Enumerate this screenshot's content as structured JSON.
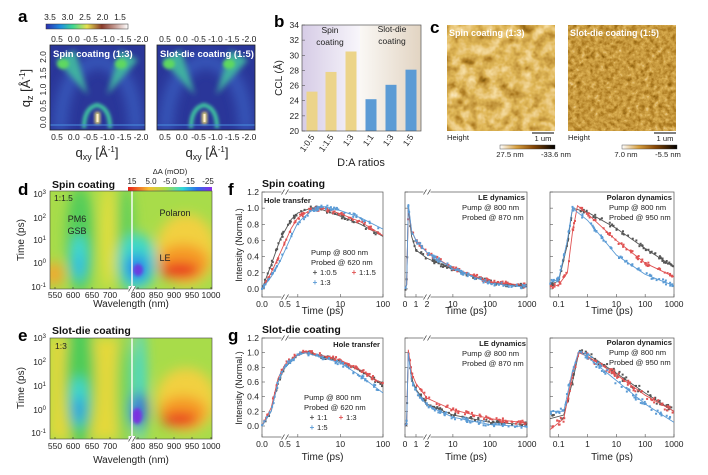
{
  "panel_labels": {
    "a": "a",
    "b": "b",
    "c": "c",
    "d": "d",
    "e": "e",
    "f": "f",
    "g": "g"
  },
  "giwaxs": {
    "colorbar_ticks": [
      "3.5",
      "3.0",
      "2.5",
      "2.0",
      "1.5"
    ],
    "colormap": [
      "#2b2fb0",
      "#1e90e0",
      "#40d890",
      "#e8e050",
      "#8a3a2a",
      "#c8a098",
      "#ffffff"
    ],
    "maps": [
      {
        "title": "Spin coating (1:3)"
      },
      {
        "title": "Slot-die coating (1:5)"
      }
    ],
    "x_ticks": [
      "0.5",
      "0.0",
      "-0.5",
      "-1.0",
      "-1.5",
      "-2.0"
    ],
    "y_ticks": [
      "2.0",
      "1.5",
      "1.0",
      "0.5",
      "0.0"
    ],
    "xlabel": "q",
    "xlabel_sub": "xy",
    "xlabel_unit": " [Å",
    "xlabel_exp": "-1",
    "xlabel_end": "]",
    "ylabel": "q",
    "ylabel_sub": "z",
    "ylabel_unit": " [Å",
    "ylabel_exp": "-1",
    "ylabel_end": "]"
  },
  "afm": {
    "images": [
      {
        "title": "Spin coating (1:3)",
        "height_label": "Height",
        "scale_bar": "1 um",
        "cbar_min": "27.5 nm",
        "cbar_max": "-33.6 nm"
      },
      {
        "title": "Slot-die coating (1:5)",
        "height_label": "Height",
        "scale_bar": "1 um",
        "cbar_min": "7.0 nm",
        "cbar_max": "-5.5 nm"
      }
    ]
  },
  "ta_maps": {
    "colorbar_title": "ΔA (mOD)",
    "colorbar_ticks": [
      "15",
      "5.0",
      "-5.0",
      "-15",
      "-25"
    ],
    "x_ticks": [
      "550",
      "600",
      "650",
      "700",
      "800",
      "850",
      "900",
      "950",
      "1000"
    ],
    "y_ticks": [
      [
        "10",
        "3"
      ],
      [
        "10",
        "2"
      ],
      [
        "10",
        "1"
      ],
      [
        "10",
        "0"
      ],
      [
        "10",
        "-1"
      ]
    ],
    "xlabel": "Wavelength (nm)",
    "ylabel": "Time (ps)",
    "d": {
      "title": "Spin coating",
      "ratio": "1:1.5",
      "labels": {
        "pm6": "PM6",
        "gsb": "GSB",
        "polaron": "Polaron",
        "le": "LE"
      }
    },
    "e": {
      "title": "Slot-die coating",
      "ratio": "1:3"
    }
  },
  "kinetics": {
    "f_title": "Spin coating",
    "g_title": "Slot-die coating",
    "ylabel": "Intensity (Normal.)",
    "xlabel": "Time (ps)",
    "pump": "Pump @ 800 nm",
    "probe_620": "Probed @ 620 nm",
    "probe_870": "Probed @ 870 nm",
    "probe_950": "Probed @ 950 nm",
    "hole_transfer": "Hole transfer",
    "le_dynamics": "LE dynamics",
    "polaron_dynamics": "Polaron dynamics",
    "y_ticks": [
      "0.0",
      "0.2",
      "0.4",
      "0.6",
      "0.8",
      "1.0",
      "1.2"
    ],
    "x_ticks_hole": [
      "0.0",
      "0.5",
      "1",
      "10",
      "100"
    ],
    "x_ticks_le": [
      "0",
      "1",
      "2",
      "10",
      "100",
      "1000"
    ],
    "x_ticks_pol": [
      "0.1",
      "1",
      "10",
      "100",
      "1000"
    ]
  },
  "colors": {
    "gray": "#555555",
    "red": "#e05252",
    "blue": "#5b9bd5",
    "bar_spin": "#ecd48a",
    "bar_slot": "#5b9bd5"
  },
  "chart_data": [
    {
      "id": "b",
      "type": "bar",
      "categories": [
        "1:0.5",
        "1:1.5",
        "1:3",
        "1:1",
        "1:3",
        "1:5"
      ],
      "values": [
        25.2,
        27.8,
        30.5,
        24.2,
        26.1,
        28.1
      ],
      "groups": [
        {
          "label_line1": "Spin",
          "label_line2": "coating",
          "categories": [
            0,
            1,
            2
          ]
        },
        {
          "label_line1": "Slot-die",
          "label_line2": "coating",
          "categories": [
            3,
            4,
            5
          ]
        }
      ],
      "xlabel": "D:A ratios",
      "ylabel": "CCL (Å)",
      "ylim": [
        20,
        34
      ],
      "y_ticks": [
        "20",
        "22",
        "24",
        "26",
        "28",
        "30",
        "32",
        "34"
      ]
    },
    {
      "id": "f-hole",
      "type": "scatter",
      "xscale": "broken linear 0–0.5 / log 0.5–100",
      "xlim": [
        0,
        100
      ],
      "ylim": [
        -0.1,
        1.2
      ],
      "series": [
        {
          "name": "1:0.5",
          "color": "gray",
          "points": [
            [
              0,
              0
            ],
            [
              0.2,
              0.3
            ],
            [
              0.4,
              0.62
            ],
            [
              0.7,
              0.86
            ],
            [
              1,
              0.94
            ],
            [
              2,
              1.0
            ],
            [
              3,
              1.0
            ],
            [
              10,
              0.9
            ],
            [
              30,
              0.8
            ],
            [
              100,
              0.65
            ]
          ]
        },
        {
          "name": "1:1.5",
          "color": "red",
          "points": [
            [
              0,
              0
            ],
            [
              0.2,
              0.2
            ],
            [
              0.4,
              0.45
            ],
            [
              0.7,
              0.75
            ],
            [
              1,
              0.88
            ],
            [
              2,
              0.98
            ],
            [
              4,
              1.0
            ],
            [
              10,
              0.93
            ],
            [
              30,
              0.83
            ],
            [
              100,
              0.66
            ]
          ]
        },
        {
          "name": "1:3",
          "color": "blue",
          "points": [
            [
              0,
              0
            ],
            [
              0.2,
              0.15
            ],
            [
              0.4,
              0.35
            ],
            [
              0.7,
              0.65
            ],
            [
              1,
              0.82
            ],
            [
              2,
              0.96
            ],
            [
              4,
              1.02
            ],
            [
              10,
              0.97
            ],
            [
              30,
              0.88
            ],
            [
              100,
              0.74
            ]
          ]
        }
      ]
    },
    {
      "id": "f-le",
      "type": "scatter",
      "xscale": "broken linear 0–2 / log 2–1000",
      "xlim": [
        0,
        1000
      ],
      "ylim": [
        -0.1,
        1.2
      ],
      "series": [
        {
          "name": "1:0.5",
          "color": "gray",
          "points": [
            [
              0,
              0
            ],
            [
              0.15,
              0.05
            ],
            [
              0.3,
              1.0
            ],
            [
              0.6,
              0.65
            ],
            [
              1,
              0.48
            ],
            [
              2,
              0.38
            ],
            [
              10,
              0.24
            ],
            [
              100,
              0.08
            ],
            [
              1000,
              0.03
            ]
          ]
        },
        {
          "name": "1:1.5",
          "color": "red",
          "points": [
            [
              0,
              0
            ],
            [
              0.15,
              0.05
            ],
            [
              0.3,
              1.02
            ],
            [
              0.6,
              0.72
            ],
            [
              1,
              0.6
            ],
            [
              2,
              0.45
            ],
            [
              10,
              0.26
            ],
            [
              100,
              0.09
            ],
            [
              1000,
              0.04
            ]
          ]
        },
        {
          "name": "1:3",
          "color": "blue",
          "points": [
            [
              0,
              0
            ],
            [
              0.15,
              0.05
            ],
            [
              0.3,
              1.05
            ],
            [
              0.6,
              0.72
            ],
            [
              1,
              0.6
            ],
            [
              2,
              0.45
            ],
            [
              10,
              0.25
            ],
            [
              100,
              0.07
            ],
            [
              1000,
              0.02
            ]
          ]
        }
      ]
    },
    {
      "id": "f-pol",
      "type": "scatter",
      "xscale": "log",
      "xlim": [
        0.05,
        1000
      ],
      "ylim": [
        -0.1,
        1.2
      ],
      "series": [
        {
          "name": "1:0.5",
          "color": "gray",
          "points": [
            [
              0.05,
              0.05
            ],
            [
              0.1,
              0.1
            ],
            [
              0.2,
              0.55
            ],
            [
              0.3,
              1.0
            ],
            [
              1,
              0.95
            ],
            [
              10,
              0.75
            ],
            [
              100,
              0.5
            ],
            [
              1000,
              0.27
            ]
          ]
        },
        {
          "name": "1:1.5",
          "color": "red",
          "points": [
            [
              0.05,
              0.02
            ],
            [
              0.1,
              0.05
            ],
            [
              0.2,
              0.2
            ],
            [
              0.3,
              0.7
            ],
            [
              0.45,
              1.03
            ],
            [
              1,
              0.93
            ],
            [
              10,
              0.6
            ],
            [
              100,
              0.32
            ],
            [
              1000,
              0.15
            ]
          ]
        },
        {
          "name": "1:3",
          "color": "blue",
          "points": [
            [
              0.05,
              0.08
            ],
            [
              0.1,
              0.12
            ],
            [
              0.2,
              0.6
            ],
            [
              0.3,
              1.0
            ],
            [
              1,
              0.85
            ],
            [
              10,
              0.42
            ],
            [
              100,
              0.18
            ],
            [
              1000,
              0.04
            ]
          ]
        }
      ]
    },
    {
      "id": "g-hole",
      "type": "scatter",
      "xscale": "broken linear 0–0.5 / log 0.5–100",
      "xlim": [
        0,
        100
      ],
      "ylim": [
        -0.15,
        1.2
      ],
      "series": [
        {
          "name": "1:1",
          "color": "gray",
          "points": [
            [
              0,
              0
            ],
            [
              0.2,
              0.2
            ],
            [
              0.35,
              0.6
            ],
            [
              0.5,
              0.8
            ],
            [
              1,
              0.97
            ],
            [
              1.5,
              1.0
            ],
            [
              10,
              0.88
            ],
            [
              30,
              0.75
            ],
            [
              100,
              0.56
            ]
          ]
        },
        {
          "name": "1:3",
          "color": "red",
          "points": [
            [
              0,
              0
            ],
            [
              0.2,
              0.25
            ],
            [
              0.35,
              0.65
            ],
            [
              0.5,
              0.84
            ],
            [
              1,
              0.98
            ],
            [
              1.5,
              1.02
            ],
            [
              10,
              0.9
            ],
            [
              30,
              0.76
            ],
            [
              100,
              0.57
            ]
          ]
        },
        {
          "name": "1:5",
          "color": "blue",
          "points": [
            [
              0,
              0
            ],
            [
              0.2,
              0.2
            ],
            [
              0.35,
              0.6
            ],
            [
              0.5,
              0.82
            ],
            [
              1,
              0.97
            ],
            [
              1.5,
              1.0
            ],
            [
              10,
              0.86
            ],
            [
              30,
              0.68
            ],
            [
              100,
              0.45
            ]
          ]
        }
      ]
    },
    {
      "id": "g-le",
      "type": "scatter",
      "xscale": "broken linear 0–2 / log 2–1000",
      "xlim": [
        0,
        1000
      ],
      "ylim": [
        -0.15,
        1.2
      ],
      "series": [
        {
          "name": "1:1",
          "color": "gray",
          "points": [
            [
              0,
              0
            ],
            [
              0.15,
              0.05
            ],
            [
              0.3,
              1.0
            ],
            [
              0.6,
              0.65
            ],
            [
              1,
              0.5
            ],
            [
              2,
              0.3
            ],
            [
              10,
              0.15
            ],
            [
              100,
              0.05
            ],
            [
              1000,
              0.02
            ]
          ]
        },
        {
          "name": "1:3",
          "color": "red",
          "points": [
            [
              0,
              0
            ],
            [
              0.15,
              0.05
            ],
            [
              0.3,
              1.04
            ],
            [
              0.6,
              0.72
            ],
            [
              1,
              0.58
            ],
            [
              2,
              0.38
            ],
            [
              10,
              0.22
            ],
            [
              100,
              0.1
            ],
            [
              1000,
              0.04
            ]
          ]
        },
        {
          "name": "1:5",
          "color": "blue",
          "points": [
            [
              0,
              0
            ],
            [
              0.15,
              0.05
            ],
            [
              0.3,
              1.0
            ],
            [
              0.6,
              0.62
            ],
            [
              1,
              0.48
            ],
            [
              2,
              0.28
            ],
            [
              10,
              0.12
            ],
            [
              100,
              0.02
            ],
            [
              1000,
              -0.01
            ]
          ]
        }
      ]
    },
    {
      "id": "g-pol",
      "type": "scatter",
      "xscale": "log",
      "xlim": [
        0.05,
        1000
      ],
      "ylim": [
        -0.15,
        1.2
      ],
      "series": [
        {
          "name": "1:1",
          "color": "gray",
          "points": [
            [
              0.05,
              0.1
            ],
            [
              0.15,
              0.15
            ],
            [
              0.3,
              0.6
            ],
            [
              0.5,
              1.0
            ],
            [
              1,
              0.98
            ],
            [
              10,
              0.72
            ],
            [
              100,
              0.45
            ],
            [
              1000,
              0.2
            ]
          ]
        },
        {
          "name": "1:3",
          "color": "red",
          "points": [
            [
              0.05,
              -0.05
            ],
            [
              0.15,
              0.1
            ],
            [
              0.3,
              0.7
            ],
            [
              0.5,
              1.0
            ],
            [
              1,
              0.95
            ],
            [
              10,
              0.7
            ],
            [
              100,
              0.42
            ],
            [
              1000,
              0.2
            ]
          ]
        },
        {
          "name": "1:5",
          "color": "blue",
          "points": [
            [
              0.05,
              0.2
            ],
            [
              0.15,
              0.2
            ],
            [
              0.3,
              0.75
            ],
            [
              0.5,
              1.02
            ],
            [
              1,
              0.94
            ],
            [
              10,
              0.62
            ],
            [
              100,
              0.3
            ],
            [
              1000,
              0.05
            ]
          ]
        }
      ]
    }
  ]
}
